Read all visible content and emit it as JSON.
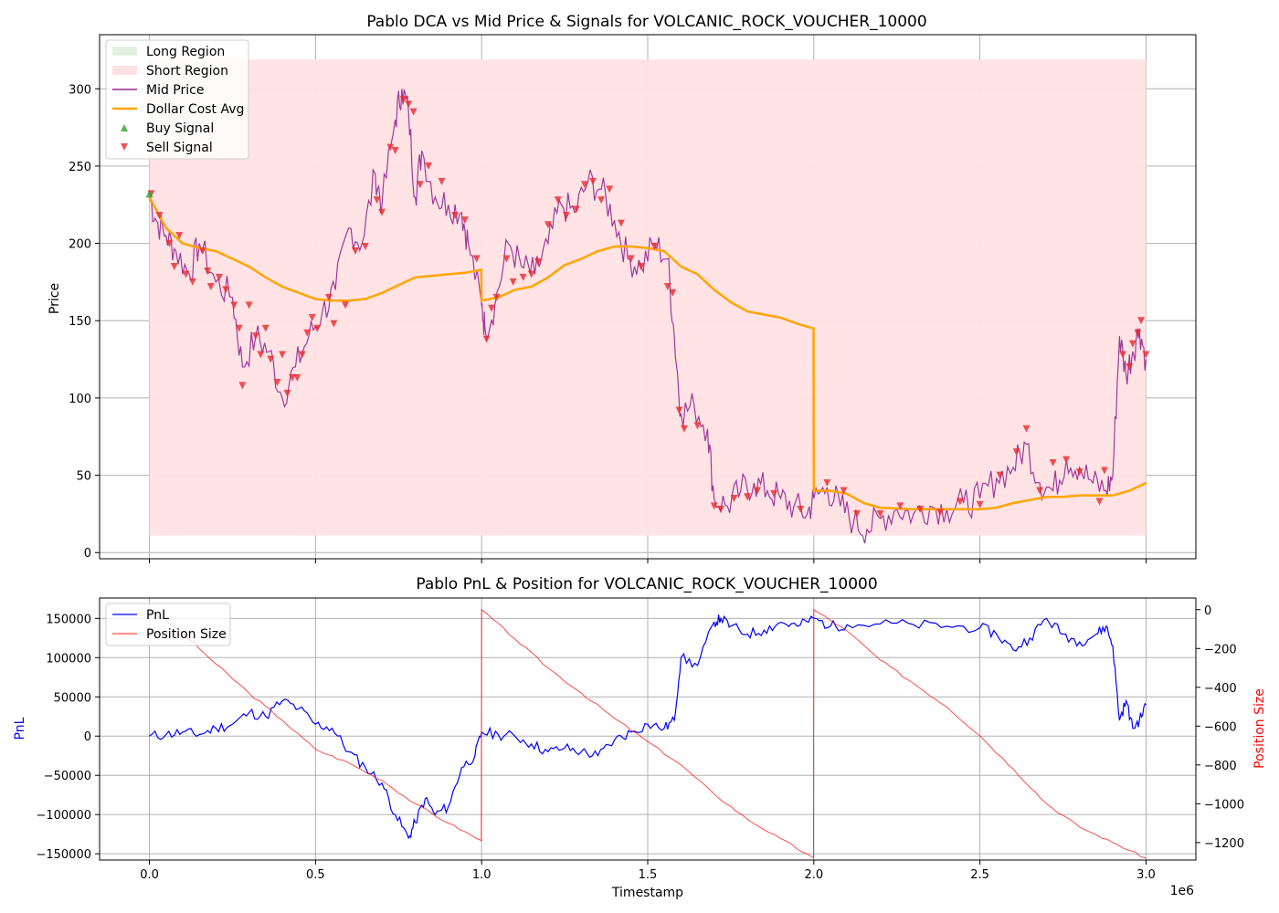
{
  "chart_data": [
    {
      "type": "line",
      "title": "Pablo DCA vs Mid Price & Signals for VOLCANIC_ROCK_VOUCHER_10000",
      "xlabel": "",
      "ylabel": "Price",
      "xlim": [
        -150000,
        3150000
      ],
      "ylim": [
        -4,
        335
      ],
      "x_ticks": [
        0,
        500000,
        1000000,
        1500000,
        2000000,
        2500000,
        3000000
      ],
      "x_tick_labels_shown": false,
      "y_ticks": [
        0,
        50,
        100,
        150,
        200,
        250,
        300
      ],
      "y_tick_labels": [
        "0",
        "50",
        "100",
        "150",
        "200",
        "250",
        "300"
      ],
      "grid": true,
      "legend_position": "upper-left",
      "legend": [
        {
          "label": "Long Region",
          "kind": "patch",
          "color": "#2ca02c"
        },
        {
          "label": "Short Region",
          "kind": "patch",
          "color": "#ff9aa2"
        },
        {
          "label": "Mid Price",
          "kind": "line",
          "color": "#800080"
        },
        {
          "label": "Dollar Cost Avg",
          "kind": "line",
          "color": "#ffa500"
        },
        {
          "label": "Buy Signal",
          "kind": "marker-up",
          "color": "#2ca02c"
        },
        {
          "label": "Sell Signal",
          "kind": "marker-down",
          "color": "#e8282e"
        }
      ],
      "regions": [
        {
          "name": "Short Region",
          "x_start": 0,
          "x_end": 3000000,
          "y_start": 11,
          "y_end": 319,
          "color": "#ffe1e4"
        }
      ],
      "series": [
        {
          "name": "Mid Price",
          "color": "#800080",
          "x": [
            0,
            20000,
            50000,
            80000,
            120000,
            150000,
            200000,
            250000,
            280000,
            320000,
            360000,
            400000,
            440000,
            480000,
            520000,
            560000,
            600000,
            640000,
            680000,
            700000,
            740000,
            760000,
            780000,
            800000,
            820000,
            860000,
            900000,
            940000,
            960000,
            1000000,
            1010000,
            1040000,
            1080000,
            1120000,
            1160000,
            1200000,
            1240000,
            1280000,
            1320000,
            1360000,
            1400000,
            1440000,
            1480000,
            1520000,
            1560000,
            1580000,
            1600000,
            1640000,
            1680000,
            1700000,
            1740000,
            1780000,
            1820000,
            1860000,
            1900000,
            1940000,
            1980000,
            2000000,
            2040000,
            2080000,
            2120000,
            2160000,
            2200000,
            2250000,
            2300000,
            2350000,
            2400000,
            2450000,
            2500000,
            2550000,
            2600000,
            2640000,
            2680000,
            2720000,
            2760000,
            2800000,
            2840000,
            2880000,
            2900000,
            2920000,
            2940000,
            2960000,
            2980000,
            3000000
          ],
          "y": [
            230,
            215,
            205,
            195,
            180,
            200,
            175,
            165,
            120,
            140,
            130,
            100,
            120,
            140,
            155,
            170,
            210,
            200,
            245,
            225,
            280,
            300,
            285,
            230,
            260,
            230,
            225,
            220,
            200,
            160,
            145,
            160,
            200,
            185,
            180,
            200,
            225,
            220,
            240,
            235,
            215,
            190,
            185,
            200,
            190,
            140,
            90,
            95,
            80,
            35,
            30,
            40,
            45,
            40,
            35,
            30,
            25,
            35,
            42,
            30,
            20,
            15,
            22,
            28,
            25,
            30,
            28,
            32,
            35,
            48,
            55,
            70,
            45,
            40,
            60,
            55,
            45,
            40,
            50,
            140,
            115,
            130,
            145,
            125
          ]
        },
        {
          "name": "Dollar Cost Avg",
          "color": "#ffa500",
          "x": [
            0,
            50000,
            100000,
            150000,
            200000,
            250000,
            300000,
            350000,
            400000,
            450000,
            500000,
            550000,
            600000,
            650000,
            700000,
            750000,
            800000,
            850000,
            900000,
            950000,
            999000,
            1000000,
            1050000,
            1100000,
            1150000,
            1200000,
            1250000,
            1300000,
            1350000,
            1400000,
            1450000,
            1500000,
            1550000,
            1600000,
            1650000,
            1700000,
            1750000,
            1800000,
            1850000,
            1900000,
            1950000,
            1999000,
            2000000,
            2050000,
            2100000,
            2150000,
            2200000,
            2300000,
            2400000,
            2500000,
            2550000,
            2600000,
            2650000,
            2700000,
            2750000,
            2800000,
            2850000,
            2900000,
            2950000,
            3000000
          ],
          "y": [
            230,
            210,
            200,
            197,
            195,
            190,
            185,
            178,
            172,
            168,
            164,
            163,
            163,
            164,
            168,
            173,
            178,
            179,
            180,
            181,
            183,
            163,
            165,
            170,
            172,
            178,
            186,
            190,
            195,
            198,
            198,
            197,
            195,
            185,
            180,
            170,
            162,
            156,
            154,
            152,
            148,
            145,
            40,
            40,
            38,
            32,
            29,
            28,
            28,
            28,
            29,
            32,
            34,
            36,
            36,
            37,
            37,
            37,
            40,
            45
          ]
        }
      ],
      "buy_signals": [
        {
          "x": 0,
          "y": 232
        }
      ],
      "sell_signals": [
        {
          "x": 5000,
          "y": 232
        },
        {
          "x": 30000,
          "y": 218
        },
        {
          "x": 60000,
          "y": 200
        },
        {
          "x": 75000,
          "y": 185
        },
        {
          "x": 90000,
          "y": 205
        },
        {
          "x": 110000,
          "y": 180
        },
        {
          "x": 130000,
          "y": 175
        },
        {
          "x": 160000,
          "y": 195
        },
        {
          "x": 175000,
          "y": 182
        },
        {
          "x": 185000,
          "y": 172
        },
        {
          "x": 210000,
          "y": 178
        },
        {
          "x": 230000,
          "y": 170
        },
        {
          "x": 255000,
          "y": 160
        },
        {
          "x": 270000,
          "y": 145
        },
        {
          "x": 280000,
          "y": 108
        },
        {
          "x": 300000,
          "y": 160
        },
        {
          "x": 320000,
          "y": 140
        },
        {
          "x": 335000,
          "y": 128
        },
        {
          "x": 350000,
          "y": 145
        },
        {
          "x": 365000,
          "y": 125
        },
        {
          "x": 385000,
          "y": 110
        },
        {
          "x": 400000,
          "y": 128
        },
        {
          "x": 415000,
          "y": 103
        },
        {
          "x": 430000,
          "y": 113
        },
        {
          "x": 445000,
          "y": 113
        },
        {
          "x": 460000,
          "y": 128
        },
        {
          "x": 475000,
          "y": 142
        },
        {
          "x": 490000,
          "y": 152
        },
        {
          "x": 505000,
          "y": 145
        },
        {
          "x": 540000,
          "y": 165
        },
        {
          "x": 555000,
          "y": 148
        },
        {
          "x": 590000,
          "y": 160
        },
        {
          "x": 620000,
          "y": 195
        },
        {
          "x": 650000,
          "y": 198
        },
        {
          "x": 685000,
          "y": 228
        },
        {
          "x": 700000,
          "y": 220
        },
        {
          "x": 725000,
          "y": 262
        },
        {
          "x": 740000,
          "y": 260
        },
        {
          "x": 765000,
          "y": 293
        },
        {
          "x": 780000,
          "y": 290
        },
        {
          "x": 795000,
          "y": 285
        },
        {
          "x": 815000,
          "y": 238
        },
        {
          "x": 840000,
          "y": 250
        },
        {
          "x": 880000,
          "y": 240
        },
        {
          "x": 920000,
          "y": 218
        },
        {
          "x": 950000,
          "y": 215
        },
        {
          "x": 985000,
          "y": 190
        },
        {
          "x": 1015000,
          "y": 138
        },
        {
          "x": 1030000,
          "y": 158
        },
        {
          "x": 1045000,
          "y": 165
        },
        {
          "x": 1075000,
          "y": 190
        },
        {
          "x": 1095000,
          "y": 175
        },
        {
          "x": 1125000,
          "y": 178
        },
        {
          "x": 1150000,
          "y": 180
        },
        {
          "x": 1170000,
          "y": 188
        },
        {
          "x": 1200000,
          "y": 212
        },
        {
          "x": 1230000,
          "y": 228
        },
        {
          "x": 1255000,
          "y": 218
        },
        {
          "x": 1285000,
          "y": 222
        },
        {
          "x": 1310000,
          "y": 238
        },
        {
          "x": 1335000,
          "y": 240
        },
        {
          "x": 1360000,
          "y": 228
        },
        {
          "x": 1385000,
          "y": 235
        },
        {
          "x": 1420000,
          "y": 213
        },
        {
          "x": 1450000,
          "y": 190
        },
        {
          "x": 1480000,
          "y": 185
        },
        {
          "x": 1520000,
          "y": 198
        },
        {
          "x": 1560000,
          "y": 172
        },
        {
          "x": 1575000,
          "y": 168
        },
        {
          "x": 1595000,
          "y": 92
        },
        {
          "x": 1610000,
          "y": 80
        },
        {
          "x": 1650000,
          "y": 82
        },
        {
          "x": 1700000,
          "y": 30
        },
        {
          "x": 1720000,
          "y": 28
        },
        {
          "x": 1760000,
          "y": 35
        },
        {
          "x": 1800000,
          "y": 36
        },
        {
          "x": 1830000,
          "y": 40
        },
        {
          "x": 1880000,
          "y": 38
        },
        {
          "x": 1960000,
          "y": 28
        },
        {
          "x": 2040000,
          "y": 45
        },
        {
          "x": 2090000,
          "y": 40
        },
        {
          "x": 2130000,
          "y": 25
        },
        {
          "x": 2200000,
          "y": 25
        },
        {
          "x": 2260000,
          "y": 30
        },
        {
          "x": 2320000,
          "y": 28
        },
        {
          "x": 2380000,
          "y": 26
        },
        {
          "x": 2440000,
          "y": 33
        },
        {
          "x": 2500000,
          "y": 31
        },
        {
          "x": 2560000,
          "y": 50
        },
        {
          "x": 2610000,
          "y": 65
        },
        {
          "x": 2640000,
          "y": 80
        },
        {
          "x": 2680000,
          "y": 40
        },
        {
          "x": 2720000,
          "y": 58
        },
        {
          "x": 2760000,
          "y": 60
        },
        {
          "x": 2800000,
          "y": 52
        },
        {
          "x": 2860000,
          "y": 33
        },
        {
          "x": 2875000,
          "y": 53
        },
        {
          "x": 2930000,
          "y": 128
        },
        {
          "x": 2950000,
          "y": 120
        },
        {
          "x": 2960000,
          "y": 135
        },
        {
          "x": 2975000,
          "y": 142
        },
        {
          "x": 2985000,
          "y": 150
        },
        {
          "x": 3000000,
          "y": 128
        }
      ]
    },
    {
      "type": "line",
      "title": "Pablo PnL & Position for VOLCANIC_ROCK_VOUCHER_10000",
      "xlabel": "Timestamp",
      "x_offset_label": "1e6",
      "ylabel": "PnL",
      "ylabel_color": "#0000ff",
      "ylabel_right": "Position Size",
      "ylabel_right_color": "#ff0000",
      "xlim": [
        -150000,
        3150000
      ],
      "ylim": [
        -158000,
        176000
      ],
      "ylim_right": [
        -1290,
        60
      ],
      "x_ticks": [
        0,
        500000,
        1000000,
        1500000,
        2000000,
        2500000,
        3000000
      ],
      "x_tick_labels": [
        "0.0",
        "0.5",
        "1.0",
        "1.5",
        "2.0",
        "2.5",
        "3.0"
      ],
      "y_ticks": [
        -150000,
        -100000,
        -50000,
        0,
        50000,
        100000,
        150000
      ],
      "y_tick_labels": [
        "−150000",
        "−100000",
        "−50000",
        "0",
        "50000",
        "100000",
        "150000"
      ],
      "y_right_ticks": [
        -1200,
        -1000,
        -800,
        -600,
        -400,
        -200,
        0
      ],
      "y_right_tick_labels": [
        "−1200",
        "−1000",
        "−800",
        "−600",
        "−400",
        "−200",
        "0"
      ],
      "grid": true,
      "legend_position": "upper-left",
      "legend": [
        {
          "label": "PnL",
          "kind": "line",
          "color": "#0000ff"
        },
        {
          "label": "Position Size",
          "kind": "line",
          "color": "#ff0000"
        }
      ],
      "series": [
        {
          "name": "PnL",
          "color": "#0000ff",
          "axis": "left",
          "x": [
            0,
            50000,
            100000,
            150000,
            200000,
            250000,
            300000,
            350000,
            400000,
            450000,
            500000,
            550000,
            600000,
            650000,
            700000,
            740000,
            780000,
            800000,
            830000,
            860000,
            900000,
            940000,
            980000,
            1000000,
            1050000,
            1100000,
            1150000,
            1200000,
            1250000,
            1300000,
            1350000,
            1400000,
            1450000,
            1500000,
            1550000,
            1580000,
            1600000,
            1650000,
            1700000,
            1720000,
            1750000,
            1800000,
            1850000,
            1900000,
            1950000,
            2000000,
            2050000,
            2100000,
            2200000,
            2300000,
            2400000,
            2500000,
            2550000,
            2600000,
            2650000,
            2700000,
            2750000,
            2800000,
            2850000,
            2880000,
            2900000,
            2920000,
            2940000,
            2960000,
            2980000,
            3000000
          ],
          "y": [
            0,
            2000,
            5000,
            2000,
            10000,
            15000,
            30000,
            25000,
            45000,
            35000,
            15000,
            10000,
            -20000,
            -40000,
            -60000,
            -100000,
            -130000,
            -110000,
            -80000,
            -100000,
            -90000,
            -40000,
            -25000,
            5000,
            2000,
            0,
            -10000,
            -20000,
            -15000,
            -20000,
            -25000,
            -5000,
            5000,
            15000,
            10000,
            20000,
            100000,
            90000,
            145000,
            150000,
            140000,
            130000,
            135000,
            145000,
            140000,
            150000,
            140000,
            142000,
            143000,
            142000,
            140000,
            138000,
            130000,
            110000,
            125000,
            150000,
            130000,
            120000,
            130000,
            140000,
            115000,
            20000,
            45000,
            10000,
            20000,
            40000
          ]
        },
        {
          "name": "Position Size",
          "color": "#ff0000",
          "axis": "right",
          "x": [
            0,
            100000,
            200000,
            300000,
            400000,
            500000,
            600000,
            700000,
            800000,
            900000,
            999000,
            1000000,
            1100000,
            1200000,
            1300000,
            1400000,
            1500000,
            1600000,
            1700000,
            1800000,
            1900000,
            1999000,
            2000000,
            2100000,
            2200000,
            2300000,
            2400000,
            2500000,
            2600000,
            2700000,
            2800000,
            2900000,
            3000000
          ],
          "y": [
            0,
            -120,
            -280,
            -430,
            -570,
            -720,
            -790,
            -880,
            -1000,
            -1100,
            -1190,
            0,
            -150,
            -300,
            -430,
            -560,
            -680,
            -800,
            -950,
            -1080,
            -1180,
            -1280,
            0,
            -110,
            -260,
            -380,
            -500,
            -650,
            -820,
            -1000,
            -1120,
            -1200,
            -1280
          ]
        }
      ]
    }
  ]
}
